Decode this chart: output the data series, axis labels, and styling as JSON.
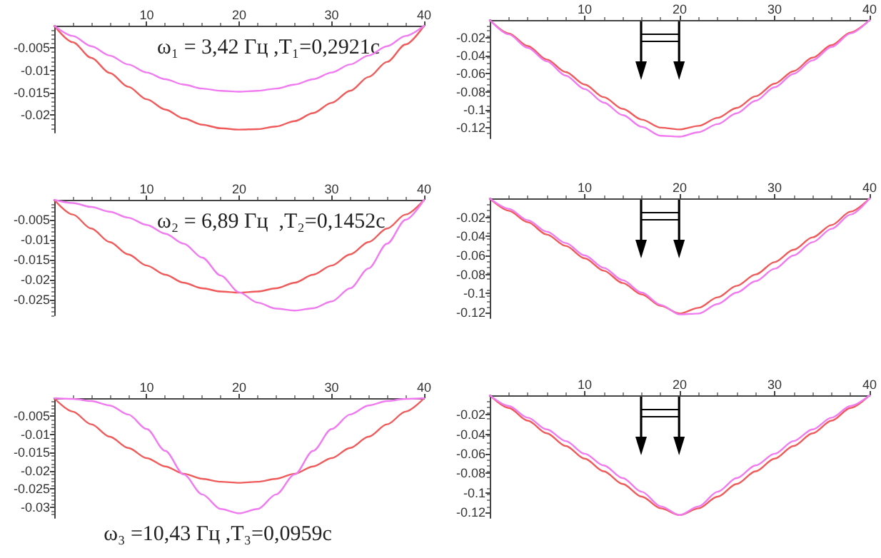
{
  "chart_data": [
    {
      "type": "line",
      "x": [
        0,
        2,
        4,
        6,
        8,
        10,
        12,
        14,
        16,
        18,
        20,
        22,
        24,
        26,
        28,
        30,
        32,
        34,
        36,
        38,
        40
      ],
      "xlim": [
        0,
        40
      ],
      "xticks": [
        10,
        20,
        30,
        40
      ],
      "ylim": [
        -0.024,
        0
      ],
      "yticks": [
        -0.005,
        -0.01,
        -0.015,
        -0.02
      ],
      "annotations": [
        "ω₁ = 3,42 Гц ,T₁=0,2921c"
      ],
      "series": [
        {
          "color": "#f05a5a",
          "values": [
            0,
            -0.0037,
            -0.0072,
            -0.0106,
            -0.0137,
            -0.0165,
            -0.0188,
            -0.0208,
            -0.0222,
            -0.023,
            -0.0233,
            -0.0232,
            -0.0226,
            -0.0214,
            -0.0196,
            -0.0173,
            -0.0146,
            -0.0115,
            -0.0081,
            -0.0042,
            0
          ]
        },
        {
          "color": "#f07af0",
          "values": [
            0,
            -0.0023,
            -0.0046,
            -0.0067,
            -0.0087,
            -0.0105,
            -0.012,
            -0.0132,
            -0.0141,
            -0.0146,
            -0.0148,
            -0.0146,
            -0.0141,
            -0.0132,
            -0.012,
            -0.0105,
            -0.0087,
            -0.0067,
            -0.0046,
            -0.0023,
            0
          ]
        }
      ]
    },
    {
      "type": "line",
      "x": [
        0,
        2,
        4,
        6,
        8,
        10,
        12,
        14,
        16,
        18,
        20,
        22,
        24,
        26,
        28,
        30,
        32,
        34,
        36,
        38,
        40
      ],
      "xlim": [
        0,
        40
      ],
      "xticks": [
        10,
        20,
        30,
        40
      ],
      "ylim": [
        -0.132,
        0
      ],
      "yticks": [
        -0.02,
        -0.04,
        -0.06,
        -0.08,
        -0.1,
        -0.12
      ],
      "series": [
        {
          "color": "#f05a5a",
          "values": [
            0,
            -0.015,
            -0.029,
            -0.044,
            -0.058,
            -0.072,
            -0.086,
            -0.099,
            -0.111,
            -0.12,
            -0.122,
            -0.118,
            -0.109,
            -0.098,
            -0.085,
            -0.071,
            -0.057,
            -0.042,
            -0.028,
            -0.014,
            0
          ]
        },
        {
          "color": "#f07af0",
          "values": [
            0,
            -0.016,
            -0.031,
            -0.046,
            -0.062,
            -0.077,
            -0.092,
            -0.106,
            -0.119,
            -0.129,
            -0.13,
            -0.125,
            -0.116,
            -0.104,
            -0.09,
            -0.075,
            -0.06,
            -0.045,
            -0.03,
            -0.015,
            0
          ]
        }
      ]
    },
    {
      "type": "line",
      "x": [
        0,
        2,
        4,
        6,
        8,
        10,
        12,
        14,
        16,
        18,
        20,
        22,
        24,
        26,
        28,
        30,
        32,
        34,
        36,
        38,
        40
      ],
      "xlim": [
        0,
        40
      ],
      "xticks": [
        10,
        20,
        30,
        40
      ],
      "ylim": [
        -0.029,
        0
      ],
      "yticks": [
        -0.005,
        -0.01,
        -0.015,
        -0.02,
        -0.025
      ],
      "annotations": [
        "ω₂ = 6,89 Гц  ,T₂=0,1452c"
      ],
      "series": [
        {
          "color": "#f05a5a",
          "values": [
            0,
            -0.0037,
            -0.0072,
            -0.0106,
            -0.0137,
            -0.0165,
            -0.0188,
            -0.0208,
            -0.0222,
            -0.023,
            -0.0233,
            -0.023,
            -0.0222,
            -0.0208,
            -0.0188,
            -0.0165,
            -0.0137,
            -0.0106,
            -0.0072,
            -0.0037,
            0
          ]
        },
        {
          "color": "#f07af0",
          "values": [
            0,
            -0.0008,
            -0.0018,
            -0.003,
            -0.0045,
            -0.0063,
            -0.0085,
            -0.011,
            -0.0145,
            -0.019,
            -0.0232,
            -0.0258,
            -0.0273,
            -0.0278,
            -0.0272,
            -0.0255,
            -0.0222,
            -0.0172,
            -0.011,
            -0.005,
            0
          ]
        }
      ]
    },
    {
      "type": "line",
      "x": [
        0,
        2,
        4,
        6,
        8,
        10,
        12,
        14,
        16,
        18,
        20,
        22,
        24,
        26,
        28,
        30,
        32,
        34,
        36,
        38,
        40
      ],
      "xlim": [
        0,
        40
      ],
      "xticks": [
        10,
        20,
        30,
        40
      ],
      "ylim": [
        -0.126,
        0
      ],
      "yticks": [
        -0.02,
        -0.04,
        -0.06,
        -0.08,
        -0.1,
        -0.12
      ],
      "series": [
        {
          "color": "#f05a5a",
          "values": [
            0,
            -0.013,
            -0.025,
            -0.038,
            -0.05,
            -0.063,
            -0.076,
            -0.089,
            -0.101,
            -0.113,
            -0.121,
            -0.115,
            -0.104,
            -0.092,
            -0.08,
            -0.067,
            -0.054,
            -0.041,
            -0.028,
            -0.014,
            0
          ]
        },
        {
          "color": "#f07af0",
          "values": [
            0,
            -0.011,
            -0.023,
            -0.035,
            -0.047,
            -0.06,
            -0.073,
            -0.086,
            -0.099,
            -0.112,
            -0.122,
            -0.121,
            -0.111,
            -0.099,
            -0.087,
            -0.074,
            -0.06,
            -0.046,
            -0.032,
            -0.017,
            0
          ]
        }
      ]
    },
    {
      "type": "line",
      "x": [
        0,
        2,
        4,
        6,
        8,
        10,
        12,
        14,
        16,
        18,
        20,
        22,
        24,
        26,
        28,
        30,
        32,
        34,
        36,
        38,
        40
      ],
      "xlim": [
        0,
        40
      ],
      "xticks": [
        10,
        20,
        30,
        40
      ],
      "ylim": [
        -0.033,
        0
      ],
      "yticks": [
        -0.005,
        -0.01,
        -0.015,
        -0.02,
        -0.025,
        -0.03
      ],
      "annotations": [
        "ω₃ =10,43 Гц ,T₃=0,0959c"
      ],
      "series": [
        {
          "color": "#f05a5a",
          "values": [
            0,
            -0.0037,
            -0.0072,
            -0.0106,
            -0.0137,
            -0.0165,
            -0.0188,
            -0.0208,
            -0.0222,
            -0.023,
            -0.0233,
            -0.023,
            -0.0222,
            -0.0208,
            -0.0188,
            -0.0165,
            -0.0137,
            -0.0106,
            -0.0072,
            -0.0037,
            0
          ]
        },
        {
          "color": "#f07af0",
          "values": [
            0,
            -0.0002,
            -0.0008,
            -0.002,
            -0.0045,
            -0.0085,
            -0.0145,
            -0.021,
            -0.0265,
            -0.0305,
            -0.0317,
            -0.0305,
            -0.0265,
            -0.021,
            -0.0145,
            -0.0085,
            -0.0045,
            -0.002,
            -0.0008,
            -0.0002,
            0
          ]
        }
      ]
    },
    {
      "type": "line",
      "x": [
        0,
        2,
        4,
        6,
        8,
        10,
        12,
        14,
        16,
        18,
        20,
        22,
        24,
        26,
        28,
        30,
        32,
        34,
        36,
        38,
        40
      ],
      "xlim": [
        0,
        40
      ],
      "xticks": [
        10,
        20,
        30,
        40
      ],
      "ylim": [
        -0.126,
        0
      ],
      "yticks": [
        -0.02,
        -0.04,
        -0.06,
        -0.08,
        -0.1,
        -0.12
      ],
      "series": [
        {
          "color": "#f05a5a",
          "values": [
            0,
            -0.013,
            -0.026,
            -0.039,
            -0.052,
            -0.065,
            -0.078,
            -0.091,
            -0.104,
            -0.116,
            -0.123,
            -0.116,
            -0.104,
            -0.091,
            -0.078,
            -0.065,
            -0.052,
            -0.039,
            -0.026,
            -0.013,
            0
          ]
        },
        {
          "color": "#f07af0",
          "values": [
            0,
            -0.011,
            -0.023,
            -0.035,
            -0.047,
            -0.06,
            -0.072,
            -0.085,
            -0.099,
            -0.114,
            -0.123,
            -0.114,
            -0.099,
            -0.085,
            -0.072,
            -0.06,
            -0.047,
            -0.035,
            -0.023,
            -0.011,
            0
          ]
        }
      ]
    }
  ]
}
